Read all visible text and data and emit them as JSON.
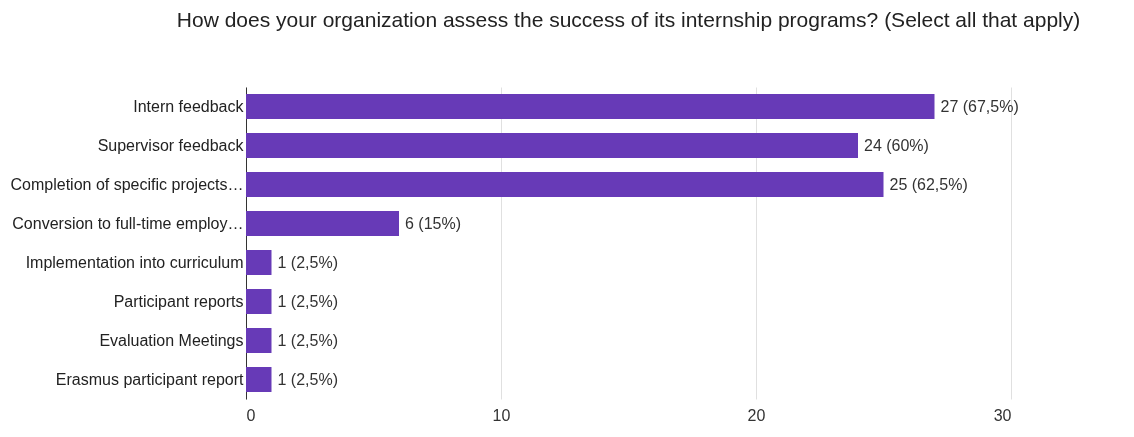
{
  "chart_data": {
    "type": "bar",
    "orientation": "horizontal",
    "title": "How does your organization assess the success of its internship programs? (Select all that apply)",
    "categories": [
      "Intern feedback",
      "Supervisor feedback",
      "Completion of specific projects…",
      "Conversion to full-time employ…",
      "Implementation into curriculum",
      "Participant reports",
      "Evaluation Meetings",
      "Erasmus participant report"
    ],
    "values": [
      27,
      24,
      25,
      6,
      1,
      1,
      1,
      1
    ],
    "value_labels": [
      "27 (67,5%)",
      "24 (60%)",
      "25 (62,5%)",
      "6 (15%)",
      "1 (2,5%)",
      "1 (2,5%)",
      "1 (2,5%)",
      "1 (2,5%)"
    ],
    "color": "#673ab7",
    "xlim": [
      0,
      30
    ],
    "xticks": [
      0,
      10,
      20,
      30
    ],
    "grid": "x"
  }
}
